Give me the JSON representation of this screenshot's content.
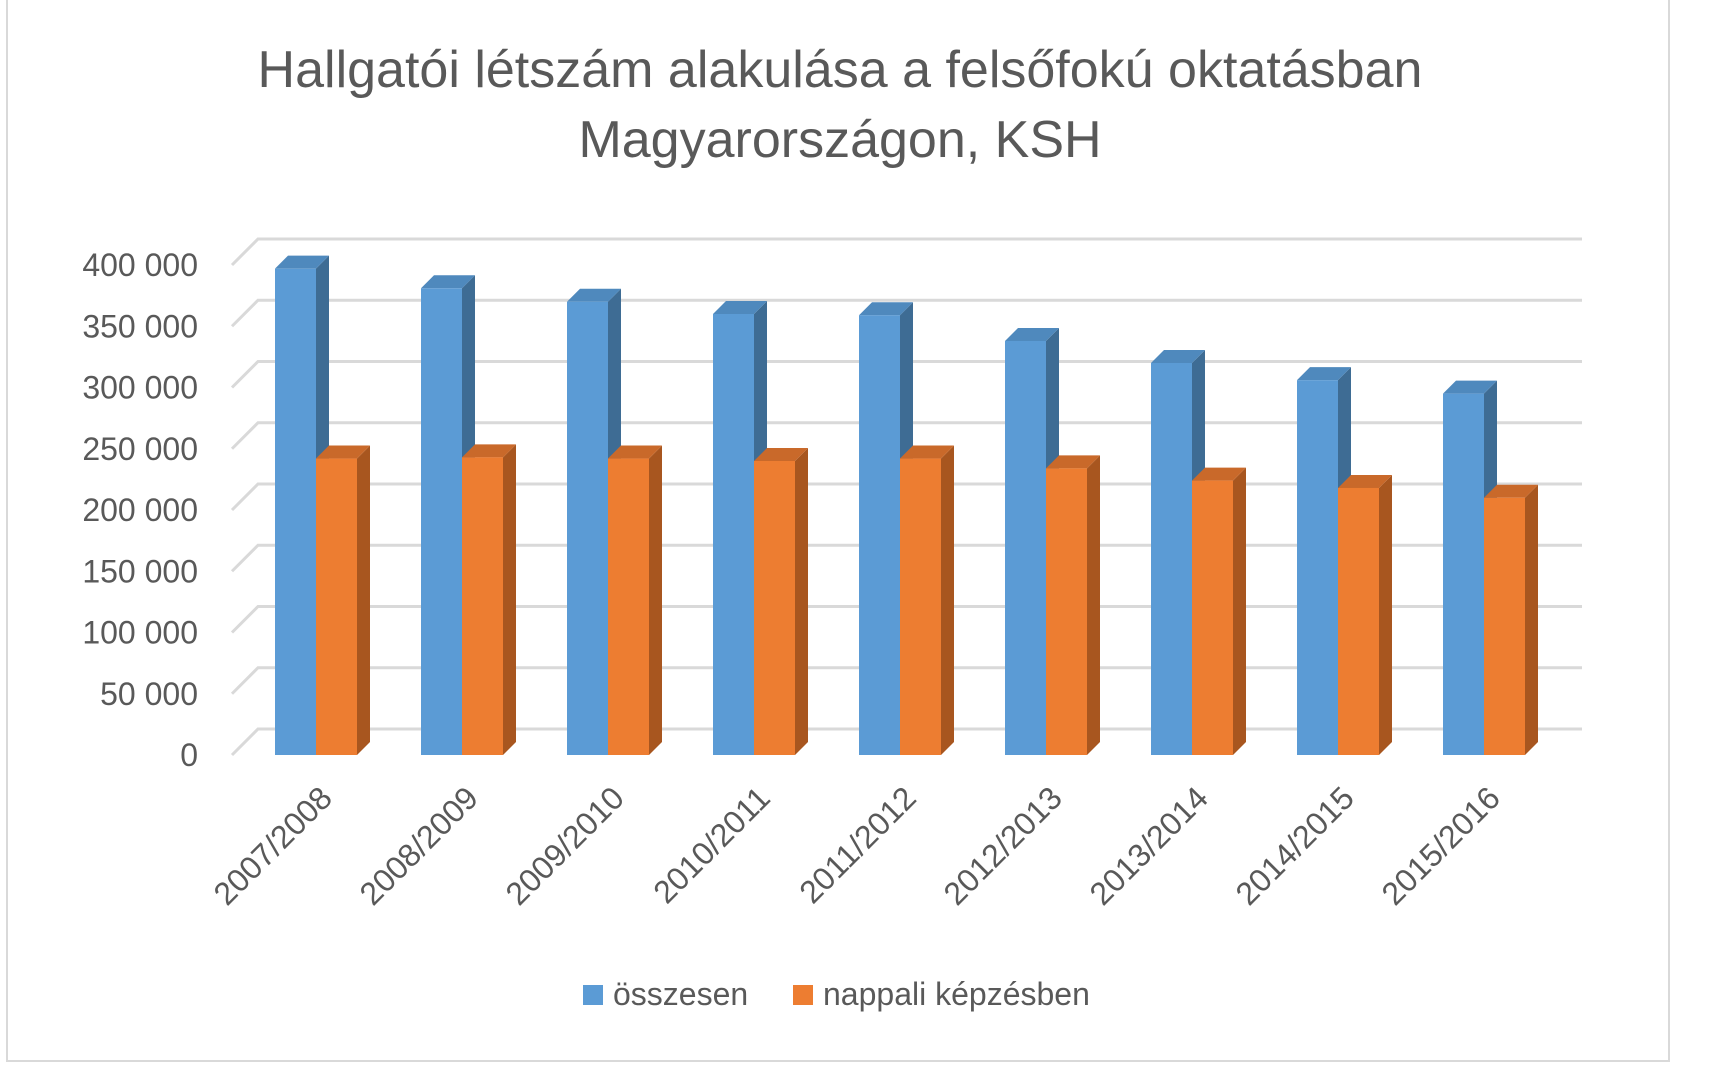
{
  "chart_data": {
    "type": "bar",
    "style": "3d-clustered-column",
    "title_lines": [
      "Hallgatói létszám alakulása a felsőfokú oktatásban",
      "Magyarországon, KSH"
    ],
    "categories": [
      "2007/2008",
      "2008/2009",
      "2009/2010",
      "2010/2011",
      "2011/2012",
      "2012/2013",
      "2013/2014",
      "2014/2015",
      "2015/2016"
    ],
    "series": [
      {
        "name": "összesen",
        "color": "#5B9BD5",
        "side_color": "#3E6C94",
        "top_color": "#4F89BD",
        "values": [
          397000,
          381000,
          370000,
          360000,
          359000,
          338000,
          320000,
          306000,
          295000
        ]
      },
      {
        "name": "nappali képzésben",
        "color": "#ED7D31",
        "side_color": "#A8561F",
        "top_color": "#C9692A",
        "values": [
          242000,
          243000,
          242000,
          240000,
          242000,
          234000,
          224000,
          218000,
          210000
        ]
      }
    ],
    "y_ticks": [
      "0",
      "50 000",
      "100 000",
      "150 000",
      "200 000",
      "250 000",
      "300 000",
      "350 000",
      "400 000"
    ],
    "ylim": [
      0,
      400000
    ],
    "grid": true,
    "legend_position": "bottom"
  }
}
